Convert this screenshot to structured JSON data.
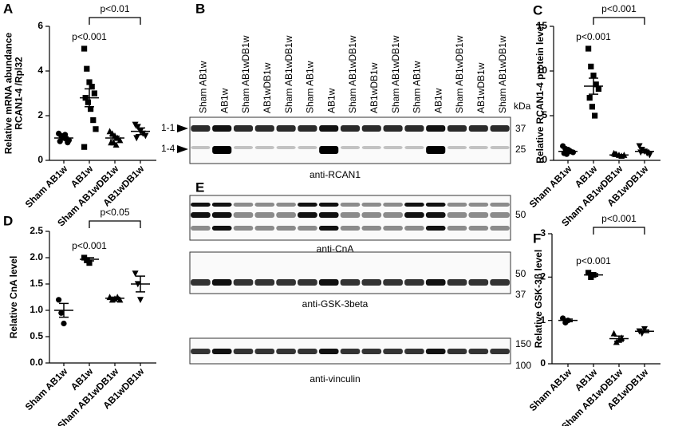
{
  "chart_data": [
    {
      "type": "dotplot",
      "panel": "A",
      "ylabel": [
        "Relative mRNA abundance",
        "RCAN1-4 /Rpl32"
      ],
      "ylim": [
        0,
        6
      ],
      "yticks": [
        0,
        2,
        4,
        6
      ],
      "series": [
        {
          "name": "Sham AB1w",
          "marker": "circle",
          "values": [
            1.2,
            1.1,
            1.0,
            0.95,
            0.9,
            0.85,
            1.05,
            1.15,
            0.8
          ],
          "mean": 1.0,
          "sem": 0.06
        },
        {
          "name": "AB1w",
          "marker": "square",
          "values": [
            5.0,
            4.1,
            3.5,
            3.3,
            3.0,
            2.8,
            2.6,
            2.3,
            1.8,
            1.4,
            0.6
          ],
          "mean": 2.8,
          "sem": 0.4
        },
        {
          "name": "Sham AB1wDB1w",
          "marker": "triangle",
          "values": [
            1.3,
            1.2,
            1.1,
            1.0,
            0.9,
            0.8,
            0.8,
            0.7
          ],
          "mean": 1.0,
          "sem": 0.08
        },
        {
          "name": "AB1wDB1w",
          "marker": "triangle-down",
          "values": [
            1.6,
            1.5,
            1.3,
            1.2,
            1.1,
            1.0
          ],
          "mean": 1.3,
          "sem": 0.15
        }
      ],
      "annotations": [
        {
          "text": "p<0.001",
          "category": "AB1w"
        }
      ],
      "brackets": [
        {
          "text": "p<0.01",
          "from": "AB1w",
          "to": "AB1wDB1w"
        }
      ]
    },
    {
      "type": "dotplot",
      "panel": "C",
      "ylabel": [
        "Relative RCAN1-4 protein level"
      ],
      "ylim": [
        0,
        15
      ],
      "yticks": [
        0,
        5,
        10,
        15
      ],
      "series": [
        {
          "name": "Sham AB1w",
          "marker": "circle",
          "values": [
            1.6,
            1.3,
            1.2,
            1.0,
            0.9,
            0.8,
            0.7,
            1.1
          ],
          "mean": 1.0,
          "sem": 0.1
        },
        {
          "name": "AB1w",
          "marker": "square",
          "values": [
            12.5,
            10.5,
            9.5,
            8.5,
            8.0,
            7.0,
            6.0,
            5.0
          ],
          "mean": 8.3,
          "sem": 0.9
        },
        {
          "name": "Sham AB1wDB1w",
          "marker": "triangle",
          "values": [
            0.8,
            0.7,
            0.6,
            0.5,
            0.6,
            0.7
          ],
          "mean": 0.6,
          "sem": 0.05
        },
        {
          "name": "AB1wDB1w",
          "marker": "triangle-down",
          "values": [
            1.6,
            1.2,
            1.0,
            0.8,
            0.6,
            0.9
          ],
          "mean": 1.0,
          "sem": 0.15
        }
      ],
      "annotations": [
        {
          "text": "p<0.001",
          "category": "AB1w"
        }
      ],
      "brackets": [
        {
          "text": "p<0.001",
          "from": "AB1w",
          "to": "AB1wDB1w"
        }
      ]
    },
    {
      "type": "dotplot",
      "panel": "D",
      "ylabel": [
        "Relative CnA level"
      ],
      "ylim": [
        0,
        2.5
      ],
      "yticks": [
        {
          "value": 0,
          "label": "0.0"
        },
        0.5,
        {
          "value": 1,
          "label": "1.0"
        },
        1.5,
        {
          "value": 2,
          "label": "2.0"
        },
        2.5
      ],
      "series": [
        {
          "name": "Sham AB1w",
          "marker": "circle",
          "values": [
            1.2,
            0.95,
            0.75
          ],
          "mean": 1.0,
          "sem": 0.13
        },
        {
          "name": "AB1w",
          "marker": "square",
          "values": [
            2.0,
            1.95,
            1.9
          ],
          "mean": 1.97,
          "sem": 0.03
        },
        {
          "name": "Sham AB1wDB1w",
          "marker": "triangle",
          "values": [
            1.25,
            1.2,
            1.22,
            1.25,
            1.2
          ],
          "mean": 1.23,
          "sem": 0.02
        },
        {
          "name": "AB1wDB1w",
          "marker": "triangle-down",
          "values": [
            1.7,
            1.5,
            1.2
          ],
          "mean": 1.5,
          "sem": 0.15
        }
      ],
      "annotations": [
        {
          "text": "p<0.001",
          "category": "AB1w"
        }
      ],
      "brackets": [
        {
          "text": "p<0.05",
          "from": "AB1w",
          "to": "AB1wDB1w"
        }
      ]
    },
    {
      "type": "dotplot",
      "panel": "F",
      "ylabel": [
        "Relative GSK-3β level"
      ],
      "ylim": [
        0,
        3
      ],
      "yticks": [
        0,
        1,
        2,
        3
      ],
      "series": [
        {
          "name": "Sham AB1w",
          "marker": "circle",
          "values": [
            1.05,
            0.95,
            1.0
          ],
          "mean": 1.0,
          "sem": 0.03
        },
        {
          "name": "AB1w",
          "marker": "square",
          "values": [
            2.1,
            2.0,
            2.05
          ],
          "mean": 2.05,
          "sem": 0.03
        },
        {
          "name": "Sham AB1wDB1w",
          "marker": "triangle",
          "values": [
            0.7,
            0.5,
            0.55,
            0.6
          ],
          "mean": 0.58,
          "sem": 0.06
        },
        {
          "name": "AB1wDB1w",
          "marker": "triangle-down",
          "values": [
            0.75,
            0.7,
            0.8
          ],
          "mean": 0.75,
          "sem": 0.03
        }
      ],
      "annotations": [
        {
          "text": "p<0.001",
          "category": "AB1w"
        }
      ],
      "brackets": [
        {
          "text": "p<0.001",
          "from": "AB1w",
          "to": "AB1wDB1w"
        }
      ]
    }
  ],
  "blot_b": {
    "panel": "B",
    "lanes": [
      "Sham AB1w",
      "AB1w",
      "Sham AB1wDB1w",
      "AB1wDB1w",
      "Sham AB1wDB1w",
      "Sham AB1w",
      "AB1w",
      "Sham AB1wDB1w",
      "AB1wDB1w",
      "Sham AB1wDB1w",
      "Sham AB1w",
      "AB1w",
      "Sham AB1wDB1w",
      "AB1wDB1w",
      "Sham AB1wDB1w"
    ],
    "unit": "kDa",
    "markers": [
      37,
      25
    ],
    "bands": [
      "1-1",
      "1-4"
    ],
    "antibody": "anti-RCAN1"
  },
  "blot_e": {
    "panel": "E",
    "blots": [
      {
        "antibody": "anti-CnA",
        "markers": [
          50
        ]
      },
      {
        "antibody": "anti-GSK-3beta",
        "markers": [
          50,
          37
        ]
      },
      {
        "antibody": "anti-vinculin",
        "markers": [
          150,
          100
        ]
      }
    ]
  }
}
